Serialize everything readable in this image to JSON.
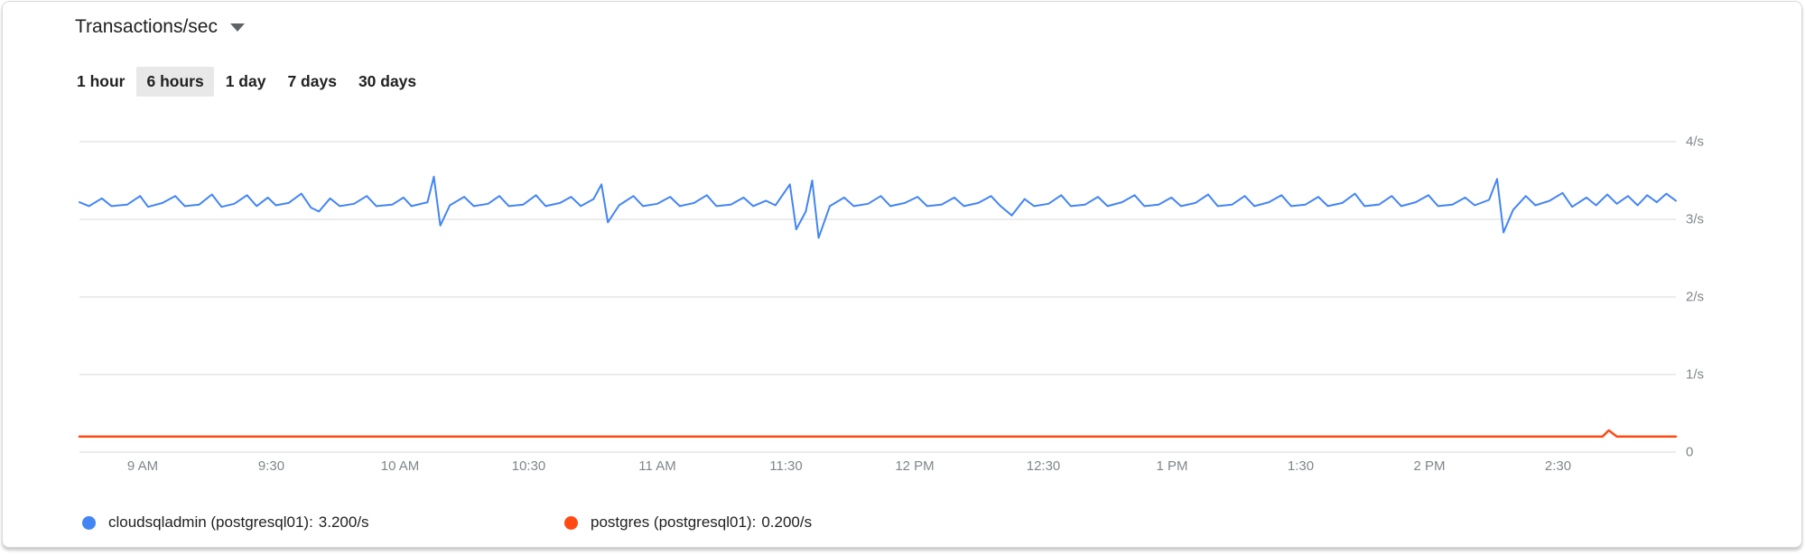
{
  "card": {
    "title": "Transactions/sec",
    "time_ranges": [
      {
        "id": "1-hour",
        "label": "1 hour",
        "selected": false
      },
      {
        "id": "6-hours",
        "label": "6 hours",
        "selected": true
      },
      {
        "id": "1-day",
        "label": "1 day",
        "selected": false
      },
      {
        "id": "7-days",
        "label": "7 days",
        "selected": false
      },
      {
        "id": "30-days",
        "label": "30 days",
        "selected": false
      }
    ]
  },
  "chart_data": {
    "type": "line",
    "title": "Transactions/sec",
    "ylim": [
      0,
      4
    ],
    "grid": "horizontal",
    "legend_position": "bottom",
    "y_ticks": [
      {
        "value": 4,
        "label": "4/s"
      },
      {
        "value": 3,
        "label": "3/s"
      },
      {
        "value": 2,
        "label": "2/s"
      },
      {
        "value": 1,
        "label": "1/s"
      },
      {
        "value": 0,
        "label": "0"
      }
    ],
    "x_ticks": [
      "9 AM",
      "9:30",
      "10 AM",
      "10:30",
      "11 AM",
      "11:30",
      "12 PM",
      "12:30",
      "1 PM",
      "1:30",
      "2 PM",
      "2:30"
    ],
    "series": [
      {
        "name": "cloudsqladmin (postgresql01):",
        "display_value": "3.200/s",
        "color": "#4285f4",
        "stroke_width": 2,
        "points": [
          [
            0,
            3.22
          ],
          [
            0.006,
            3.17
          ],
          [
            0.014,
            3.27
          ],
          [
            0.02,
            3.17
          ],
          [
            0.03,
            3.19
          ],
          [
            0.038,
            3.3
          ],
          [
            0.043,
            3.16
          ],
          [
            0.052,
            3.21
          ],
          [
            0.06,
            3.3
          ],
          [
            0.066,
            3.17
          ],
          [
            0.075,
            3.19
          ],
          [
            0.083,
            3.32
          ],
          [
            0.089,
            3.16
          ],
          [
            0.097,
            3.2
          ],
          [
            0.105,
            3.31
          ],
          [
            0.111,
            3.17
          ],
          [
            0.118,
            3.28
          ],
          [
            0.123,
            3.18
          ],
          [
            0.131,
            3.21
          ],
          [
            0.139,
            3.33
          ],
          [
            0.145,
            3.15
          ],
          [
            0.15,
            3.1
          ],
          [
            0.157,
            3.27
          ],
          [
            0.163,
            3.17
          ],
          [
            0.172,
            3.2
          ],
          [
            0.18,
            3.3
          ],
          [
            0.186,
            3.17
          ],
          [
            0.196,
            3.19
          ],
          [
            0.203,
            3.28
          ],
          [
            0.208,
            3.17
          ],
          [
            0.218,
            3.22
          ],
          [
            0.222,
            3.55
          ],
          [
            0.226,
            2.92
          ],
          [
            0.232,
            3.18
          ],
          [
            0.241,
            3.29
          ],
          [
            0.247,
            3.17
          ],
          [
            0.256,
            3.2
          ],
          [
            0.263,
            3.3
          ],
          [
            0.269,
            3.17
          ],
          [
            0.278,
            3.19
          ],
          [
            0.286,
            3.31
          ],
          [
            0.292,
            3.17
          ],
          [
            0.301,
            3.21
          ],
          [
            0.308,
            3.29
          ],
          [
            0.314,
            3.17
          ],
          [
            0.322,
            3.26
          ],
          [
            0.327,
            3.45
          ],
          [
            0.331,
            2.96
          ],
          [
            0.338,
            3.18
          ],
          [
            0.347,
            3.3
          ],
          [
            0.353,
            3.17
          ],
          [
            0.362,
            3.2
          ],
          [
            0.37,
            3.29
          ],
          [
            0.376,
            3.17
          ],
          [
            0.385,
            3.21
          ],
          [
            0.393,
            3.31
          ],
          [
            0.399,
            3.17
          ],
          [
            0.408,
            3.19
          ],
          [
            0.416,
            3.28
          ],
          [
            0.422,
            3.17
          ],
          [
            0.43,
            3.24
          ],
          [
            0.436,
            3.18
          ],
          [
            0.445,
            3.45
          ],
          [
            0.449,
            2.87
          ],
          [
            0.455,
            3.1
          ],
          [
            0.459,
            3.5
          ],
          [
            0.463,
            2.76
          ],
          [
            0.47,
            3.17
          ],
          [
            0.479,
            3.28
          ],
          [
            0.485,
            3.17
          ],
          [
            0.494,
            3.2
          ],
          [
            0.502,
            3.3
          ],
          [
            0.508,
            3.17
          ],
          [
            0.517,
            3.21
          ],
          [
            0.525,
            3.29
          ],
          [
            0.531,
            3.17
          ],
          [
            0.54,
            3.19
          ],
          [
            0.548,
            3.28
          ],
          [
            0.554,
            3.17
          ],
          [
            0.563,
            3.21
          ],
          [
            0.571,
            3.3
          ],
          [
            0.577,
            3.17
          ],
          [
            0.584,
            3.05
          ],
          [
            0.592,
            3.26
          ],
          [
            0.598,
            3.17
          ],
          [
            0.607,
            3.2
          ],
          [
            0.615,
            3.31
          ],
          [
            0.621,
            3.17
          ],
          [
            0.63,
            3.19
          ],
          [
            0.638,
            3.29
          ],
          [
            0.644,
            3.17
          ],
          [
            0.653,
            3.22
          ],
          [
            0.661,
            3.31
          ],
          [
            0.667,
            3.17
          ],
          [
            0.676,
            3.19
          ],
          [
            0.684,
            3.28
          ],
          [
            0.69,
            3.17
          ],
          [
            0.699,
            3.21
          ],
          [
            0.707,
            3.32
          ],
          [
            0.713,
            3.17
          ],
          [
            0.722,
            3.19
          ],
          [
            0.73,
            3.3
          ],
          [
            0.736,
            3.17
          ],
          [
            0.745,
            3.22
          ],
          [
            0.753,
            3.31
          ],
          [
            0.759,
            3.17
          ],
          [
            0.768,
            3.19
          ],
          [
            0.776,
            3.29
          ],
          [
            0.782,
            3.17
          ],
          [
            0.791,
            3.21
          ],
          [
            0.799,
            3.33
          ],
          [
            0.805,
            3.17
          ],
          [
            0.814,
            3.19
          ],
          [
            0.822,
            3.3
          ],
          [
            0.828,
            3.17
          ],
          [
            0.837,
            3.22
          ],
          [
            0.845,
            3.31
          ],
          [
            0.851,
            3.17
          ],
          [
            0.86,
            3.19
          ],
          [
            0.868,
            3.28
          ],
          [
            0.874,
            3.18
          ],
          [
            0.883,
            3.25
          ],
          [
            0.888,
            3.52
          ],
          [
            0.892,
            2.83
          ],
          [
            0.898,
            3.12
          ],
          [
            0.906,
            3.3
          ],
          [
            0.912,
            3.18
          ],
          [
            0.921,
            3.24
          ],
          [
            0.929,
            3.34
          ],
          [
            0.935,
            3.16
          ],
          [
            0.944,
            3.28
          ],
          [
            0.95,
            3.18
          ],
          [
            0.957,
            3.32
          ],
          [
            0.963,
            3.2
          ],
          [
            0.97,
            3.3
          ],
          [
            0.976,
            3.18
          ],
          [
            0.982,
            3.31
          ],
          [
            0.988,
            3.22
          ],
          [
            0.994,
            3.33
          ],
          [
            1,
            3.24
          ]
        ]
      },
      {
        "name": "postgres (postgresql01):",
        "display_value": "0.200/s",
        "color": "#ff4a14",
        "stroke_width": 2.5,
        "points": [
          [
            0,
            0.2
          ],
          [
            0.945,
            0.2
          ],
          [
            0.954,
            0.2
          ],
          [
            0.958,
            0.28
          ],
          [
            0.963,
            0.2
          ],
          [
            1,
            0.2
          ]
        ]
      }
    ]
  }
}
